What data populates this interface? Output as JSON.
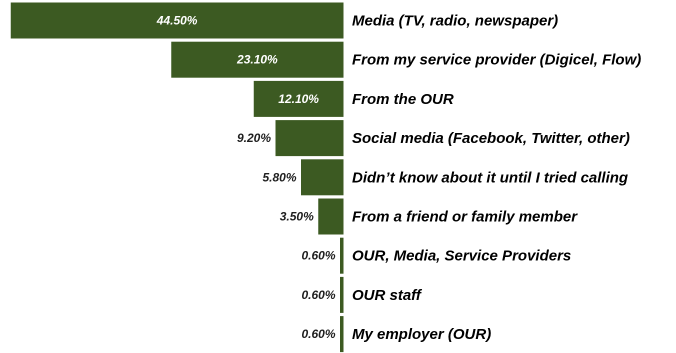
{
  "chart_data": {
    "type": "bar",
    "orientation": "horizontal",
    "bar_direction": "right-aligned",
    "bar_color": "#3c5a22",
    "bar_border_color": "#ffffff",
    "title": "",
    "xlabel": "",
    "ylabel": "",
    "grid": false,
    "legend": "none",
    "categories": [
      "Media (TV, radio, newspaper)",
      "From my service provider (Digicel, Flow)",
      "From the OUR",
      "Social media (Facebook, Twitter, other)",
      "Didn’t know about it until I tried calling",
      "From a friend or family member",
      "OUR, Media, Service Providers",
      "OUR staff",
      "My employer (OUR)"
    ],
    "values": [
      44.5,
      23.1,
      12.1,
      9.2,
      5.8,
      3.5,
      0.6,
      0.6,
      0.6
    ],
    "data_labels": [
      "44.50%",
      "23.10%",
      "12.10%",
      "9.20%",
      "5.80%",
      "3.50%",
      "0.60%",
      "0.60%",
      "0.60%"
    ]
  }
}
